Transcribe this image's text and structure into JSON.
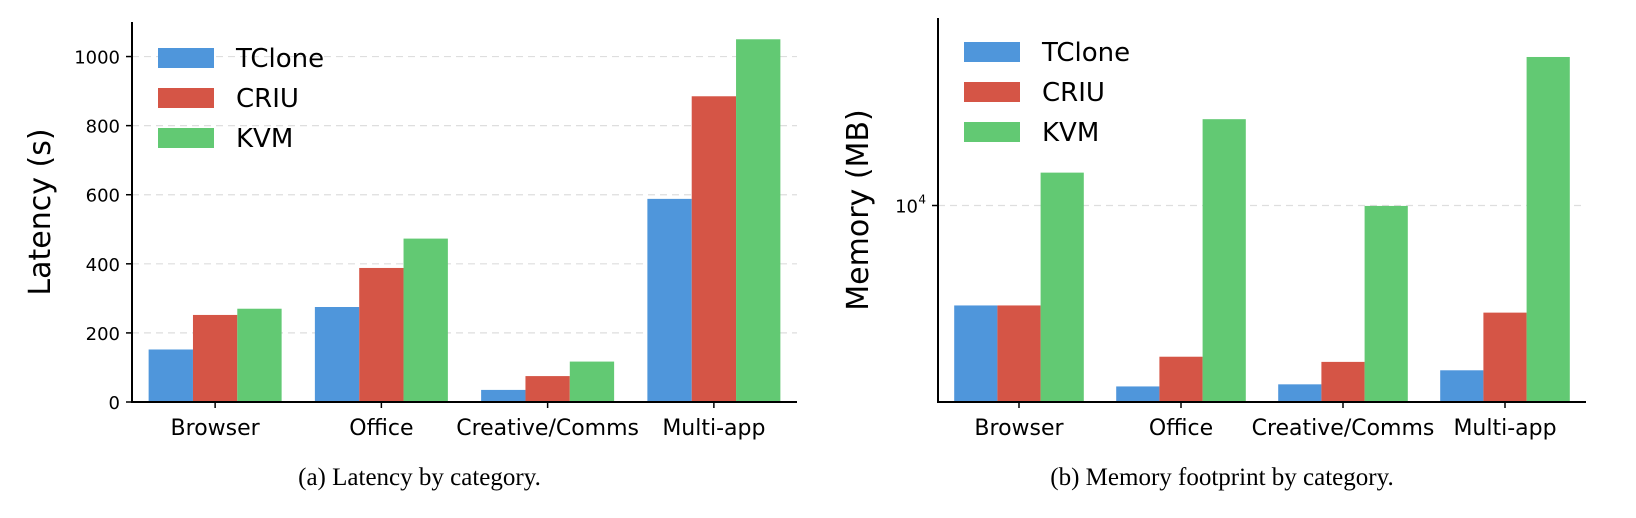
{
  "series_colors": {
    "TClone": "#4f96db",
    "CRIU": "#d55546",
    "KVM": "#62c973"
  },
  "chart_data": [
    {
      "type": "bar",
      "caption": "(a) Latency by category.",
      "categories": [
        "Browser",
        "Office",
        "Creative/Comms",
        "Multi-app"
      ],
      "series": [
        {
          "name": "TClone",
          "values": [
            152,
            275,
            35,
            588
          ]
        },
        {
          "name": "CRIU",
          "values": [
            252,
            388,
            75,
            885
          ]
        },
        {
          "name": "KVM",
          "values": [
            270,
            473,
            117,
            1050
          ]
        }
      ],
      "xlabel": "",
      "ylabel": "Latency (s)",
      "ylim": [
        0,
        1100
      ],
      "yticks": [
        0,
        200,
        400,
        600,
        800,
        1000
      ],
      "ytick_labels": [
        "0",
        "200",
        "400",
        "600",
        "800",
        "1000"
      ],
      "yscale": "linear",
      "grid": "y-dashed",
      "legend_position": "top-left"
    },
    {
      "type": "bar",
      "caption": "(b) Memory footprint by category.",
      "categories": [
        "Browser",
        "Office",
        "Creative/Comms",
        "Multi-app"
      ],
      "series": [
        {
          "name": "TClone",
          "values": [
            3100,
            1200,
            1230,
            1450
          ]
        },
        {
          "name": "CRIU",
          "values": [
            3100,
            1700,
            1600,
            2850
          ]
        },
        {
          "name": "KVM",
          "values": [
            14700,
            27500,
            9950,
            57000
          ]
        }
      ],
      "xlabel": "",
      "ylabel": "Memory (MB)",
      "ylim": [
        1000,
        90000
      ],
      "yticks": [
        10000
      ],
      "ytick_labels": [
        "10",
        "4"
      ],
      "yscale": "log",
      "grid": "y-dashed",
      "legend_position": "top-left"
    }
  ]
}
